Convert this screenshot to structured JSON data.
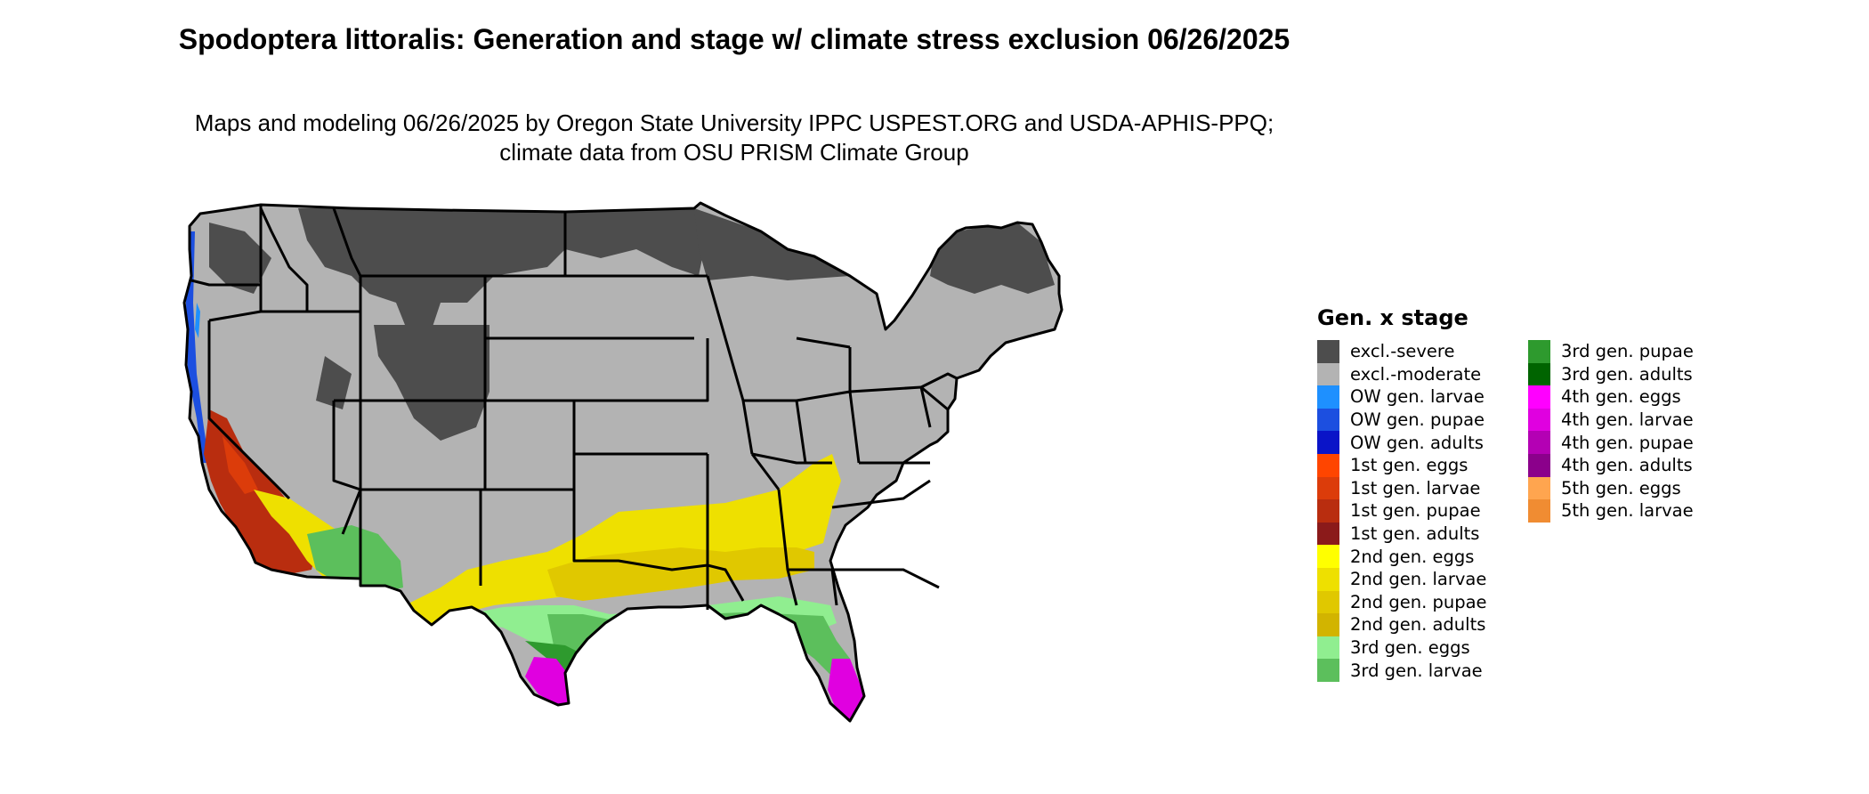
{
  "title": "Spodoptera littoralis: Generation and stage w/ climate stress exclusion 06/26/2025",
  "subtitle": "Maps and modeling 06/26/2025 by Oregon State University IPPC USPEST.ORG and USDA-APHIS-PPQ; climate data from OSU PRISM Climate Group",
  "legend": {
    "title": "Gen. x stage",
    "columns": [
      [
        {
          "label": "excl.-severe",
          "color": "#4d4d4d"
        },
        {
          "label": "excl.-moderate",
          "color": "#b3b3b3"
        },
        {
          "label": "OW gen. larvae",
          "color": "#1e90ff"
        },
        {
          "label": "OW gen. pupae",
          "color": "#1c4fe0"
        },
        {
          "label": "OW gen. adults",
          "color": "#0a14c8"
        },
        {
          "label": "1st gen. eggs",
          "color": "#ff4500"
        },
        {
          "label": "1st gen. larvae",
          "color": "#dc3c0a"
        },
        {
          "label": "1st gen. pupae",
          "color": "#b92d0f"
        },
        {
          "label": "1st gen. adults",
          "color": "#8b1a1a"
        },
        {
          "label": "2nd gen. eggs",
          "color": "#ffff00"
        },
        {
          "label": "2nd gen. larvae",
          "color": "#eee000"
        },
        {
          "label": "2nd gen. pupae",
          "color": "#e0c800"
        },
        {
          "label": "2nd gen. adults",
          "color": "#d2b400"
        },
        {
          "label": "3rd gen. eggs",
          "color": "#90ee90"
        },
        {
          "label": "3rd gen. larvae",
          "color": "#5cbf5c"
        }
      ],
      [
        {
          "label": "3rd gen. pupae",
          "color": "#2e9a2e"
        },
        {
          "label": "3rd gen. adults",
          "color": "#006400"
        },
        {
          "label": "4th gen. eggs",
          "color": "#ff00ff"
        },
        {
          "label": "4th gen. larvae",
          "color": "#e000e0"
        },
        {
          "label": "4th gen. pupae",
          "color": "#b400b4"
        },
        {
          "label": "4th gen. adults",
          "color": "#8b008b"
        },
        {
          "label": "5th gen. eggs",
          "color": "#ffa54f"
        },
        {
          "label": "5th gen. larvae",
          "color": "#f08c32"
        }
      ]
    ]
  }
}
